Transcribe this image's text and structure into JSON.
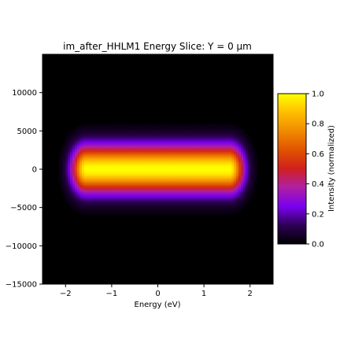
{
  "chart_data": {
    "type": "heatmap",
    "title": "im_after_HHLM1 Energy Slice: Y = 0 μm",
    "xlabel": "Energy (eV)",
    "ylabel": "",
    "xlim": [
      -2.5,
      2.5
    ],
    "ylim": [
      -15000,
      15000
    ],
    "x_ticks": [
      -2,
      -1,
      0,
      1,
      2
    ],
    "x_tick_labels": [
      "−2",
      "−1",
      "0",
      "1",
      "2"
    ],
    "y_ticks": [
      10000,
      5000,
      0,
      -5000,
      -10000,
      -15000
    ],
    "y_tick_labels": [
      "10000",
      "5000",
      "0",
      "−5000",
      "−10000",
      "−15000"
    ],
    "colormap": "gnuplot",
    "colorbar": {
      "label": "Intensity (normalized)",
      "range": [
        0.0,
        1.0
      ],
      "ticks": [
        1.0,
        0.8,
        0.6,
        0.4,
        0.2,
        0.0
      ],
      "tick_labels": [
        "1.0",
        "0.8",
        "0.6",
        "0.4",
        "0.2",
        "0.0"
      ]
    },
    "intensity_model": {
      "x_center": 0.0,
      "x_half_width_flat": 1.55,
      "x_edge_sigma": 0.22,
      "y_center": 0,
      "y_sigma": 2100
    },
    "colors": {
      "background": "#000000",
      "low": "#2b0050",
      "mid_low": "#8000ff",
      "mid": "#c0205f",
      "mid_high": "#e05000",
      "high": "#ffd700",
      "max": "#ffff00"
    }
  }
}
